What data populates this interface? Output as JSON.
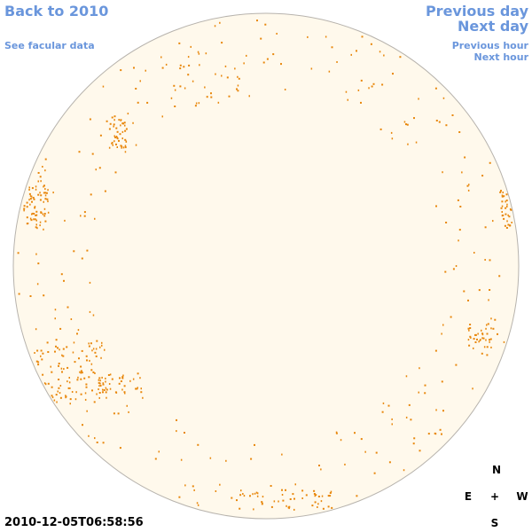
{
  "nav": {
    "back": "Back to 2010",
    "facular": "See facular data",
    "prev_day": "Previous day",
    "next_day": "Next day",
    "prev_hour": "Previous hour",
    "next_hour": "Next hour"
  },
  "timestamp": "2010-12-05T06:58:56",
  "compass": {
    "n": "N",
    "e": "E",
    "center": "+",
    "w": "W",
    "s": "S"
  },
  "colors": {
    "disk_fill": "#fff9ec",
    "disk_border": "#b7b3ad",
    "spot": "#e8870c",
    "link": "#6a96dc"
  }
}
